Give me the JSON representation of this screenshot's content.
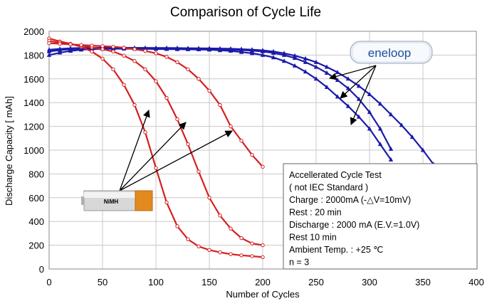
{
  "chart_data": {
    "type": "line",
    "title": "Comparison of Cycle Life",
    "xlabel": "Number of Cycles",
    "ylabel": "Discharge Capacity [ mAh]",
    "xlim": [
      0,
      400
    ],
    "ylim": [
      0,
      2000
    ],
    "xticks": [
      0,
      50,
      100,
      150,
      200,
      250,
      300,
      350,
      400
    ],
    "yticks": [
      0,
      200,
      400,
      600,
      800,
      1000,
      1200,
      1400,
      1600,
      1800,
      2000
    ],
    "grid": true,
    "series": [
      {
        "name": "eneloop",
        "color": "#1a1aaa",
        "marker": "triangle",
        "x": [
          0,
          10,
          20,
          30,
          40,
          50,
          60,
          70,
          80,
          90,
          100,
          110,
          120,
          130,
          140,
          150,
          160,
          170,
          180,
          190,
          200,
          210,
          220,
          230,
          240,
          250,
          260,
          270,
          280,
          290,
          300,
          310,
          320
        ],
        "y": [
          1800,
          1820,
          1835,
          1845,
          1850,
          1852,
          1853,
          1853,
          1853,
          1852,
          1851,
          1850,
          1849,
          1848,
          1847,
          1845,
          1840,
          1835,
          1825,
          1815,
          1800,
          1780,
          1750,
          1710,
          1660,
          1600,
          1530,
          1450,
          1370,
          1280,
          1180,
          1050,
          920
        ]
      },
      {
        "name": "eneloop",
        "color": "#1a1aaa",
        "marker": "triangle",
        "x": [
          0,
          10,
          20,
          30,
          40,
          50,
          60,
          70,
          80,
          90,
          100,
          110,
          120,
          130,
          140,
          150,
          160,
          170,
          180,
          190,
          200,
          210,
          220,
          230,
          240,
          250,
          260,
          270,
          280,
          290,
          300,
          310,
          320
        ],
        "y": [
          1830,
          1842,
          1850,
          1855,
          1857,
          1858,
          1858,
          1857,
          1857,
          1856,
          1855,
          1855,
          1854,
          1853,
          1852,
          1850,
          1848,
          1845,
          1842,
          1837,
          1830,
          1818,
          1800,
          1775,
          1740,
          1700,
          1650,
          1590,
          1520,
          1430,
          1320,
          1180,
          1010
        ]
      },
      {
        "name": "eneloop",
        "color": "#1a1aaa",
        "marker": "triangle",
        "x": [
          0,
          10,
          20,
          30,
          40,
          50,
          60,
          70,
          80,
          90,
          100,
          110,
          120,
          130,
          140,
          150,
          160,
          170,
          180,
          190,
          200,
          210,
          220,
          230,
          240,
          250,
          260,
          270,
          280,
          290,
          300,
          310,
          320,
          330,
          340,
          350,
          360
        ],
        "y": [
          1845,
          1852,
          1857,
          1860,
          1861,
          1862,
          1862,
          1862,
          1861,
          1861,
          1860,
          1860,
          1859,
          1858,
          1857,
          1856,
          1855,
          1853,
          1850,
          1846,
          1840,
          1830,
          1815,
          1795,
          1770,
          1740,
          1700,
          1655,
          1600,
          1540,
          1470,
          1390,
          1300,
          1210,
          1110,
          1000,
          880
        ]
      },
      {
        "name": "NiMH",
        "color": "#d42020",
        "marker": "circle",
        "x": [
          0,
          10,
          20,
          30,
          40,
          50,
          60,
          70,
          80,
          90,
          100,
          110,
          120,
          130,
          140,
          150,
          160,
          170,
          180,
          190,
          200
        ],
        "y": [
          1940,
          1915,
          1895,
          1870,
          1830,
          1770,
          1680,
          1550,
          1380,
          1150,
          850,
          560,
          360,
          250,
          190,
          160,
          140,
          125,
          115,
          108,
          100
        ]
      },
      {
        "name": "NiMH",
        "color": "#d42020",
        "marker": "circle",
        "x": [
          0,
          10,
          20,
          30,
          40,
          50,
          60,
          70,
          80,
          90,
          100,
          110,
          120,
          130,
          140,
          150,
          160,
          170,
          180,
          190,
          200
        ],
        "y": [
          1920,
          1905,
          1890,
          1880,
          1865,
          1850,
          1830,
          1795,
          1750,
          1680,
          1580,
          1440,
          1260,
          1050,
          820,
          600,
          450,
          340,
          260,
          215,
          200
        ]
      },
      {
        "name": "NiMH",
        "color": "#d42020",
        "marker": "circle",
        "x": [
          0,
          10,
          20,
          30,
          40,
          50,
          60,
          70,
          80,
          90,
          100,
          110,
          120,
          130,
          140,
          150,
          160,
          170,
          180,
          190,
          200
        ],
        "y": [
          1900,
          1895,
          1890,
          1885,
          1880,
          1875,
          1870,
          1862,
          1850,
          1835,
          1815,
          1785,
          1740,
          1680,
          1600,
          1500,
          1380,
          1200,
          1080,
          960,
          860
        ]
      }
    ],
    "annotations": {
      "eneloop_label": "eneloop",
      "nimh_label": "NiMH",
      "test_conditions": [
        "Accellerated Cycle Test",
        "( not IEC Standard )",
        "Charge : 2000mA (-△V=10mV)",
        "Rest : 20 min",
        "Discharge : 2000 mA (E.V.=1.0V)",
        "Rest 10 min",
        "Ambient Temp. : +25 ℃",
        "n = 3"
      ]
    }
  }
}
